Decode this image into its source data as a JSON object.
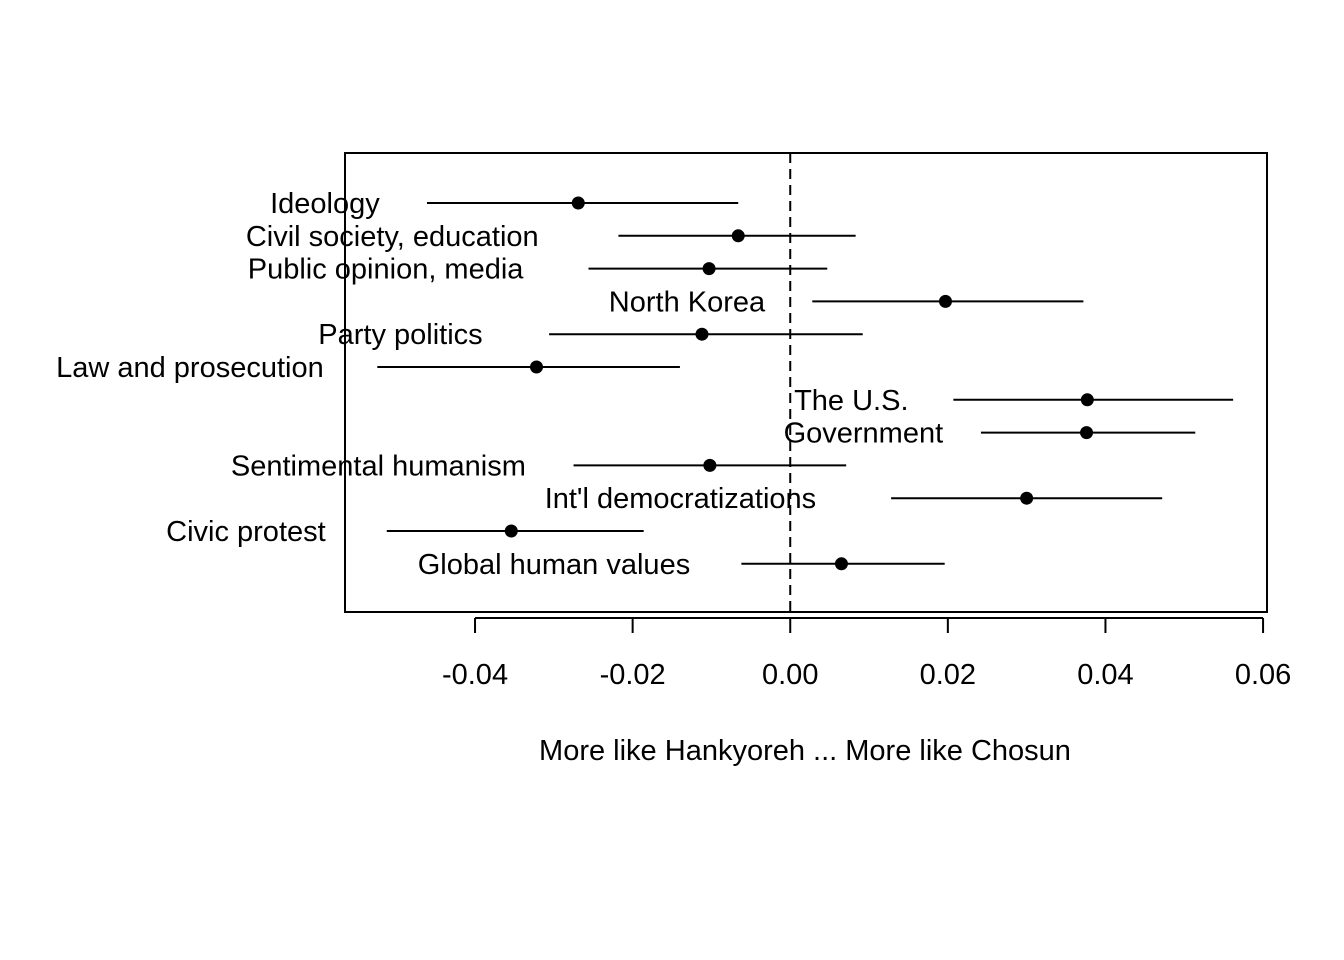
{
  "chart_data": {
    "type": "scatter",
    "subtype": "coefficient-plot-with-intervals",
    "xlabel": "More like Hankyoreh ... More like Chosun",
    "xlim": [
      -0.0565,
      0.0605
    ],
    "xticks": [
      "-0.04",
      "-0.02",
      "0.00",
      "0.02",
      "0.04",
      "0.06"
    ],
    "reference_line": {
      "x": 0.0,
      "style": "dashed"
    },
    "grid": false,
    "legend": "none",
    "points": [
      {
        "label": "Ideology",
        "estimate": -0.0269,
        "lower": -0.0461,
        "upper": -0.0066
      },
      {
        "label": "Civil society, education",
        "estimate": -0.0066,
        "lower": -0.0218,
        "upper": 0.0083
      },
      {
        "label": "Public opinion, media",
        "estimate": -0.0103,
        "lower": -0.0256,
        "upper": 0.0047
      },
      {
        "label": "North Korea",
        "estimate": 0.0197,
        "lower": 0.0028,
        "upper": 0.0372
      },
      {
        "label": "Party politics",
        "estimate": -0.0112,
        "lower": -0.0306,
        "upper": 0.0092
      },
      {
        "label": "Law and prosecution",
        "estimate": -0.0322,
        "lower": -0.0524,
        "upper": -0.014
      },
      {
        "label": "The U.S.",
        "estimate": 0.0377,
        "lower": 0.0207,
        "upper": 0.0562
      },
      {
        "label": "Government",
        "estimate": 0.0376,
        "lower": 0.0242,
        "upper": 0.0514
      },
      {
        "label": "Sentimental humanism",
        "estimate": -0.0102,
        "lower": -0.0275,
        "upper": 0.0071
      },
      {
        "label": "Int'l democratizations",
        "estimate": 0.03,
        "lower": 0.0128,
        "upper": 0.0472
      },
      {
        "label": "Civic protest",
        "estimate": -0.0354,
        "lower": -0.0512,
        "upper": -0.0186
      },
      {
        "label": "Global human values",
        "estimate": 0.0065,
        "lower": -0.0062,
        "upper": 0.0196
      }
    ]
  }
}
